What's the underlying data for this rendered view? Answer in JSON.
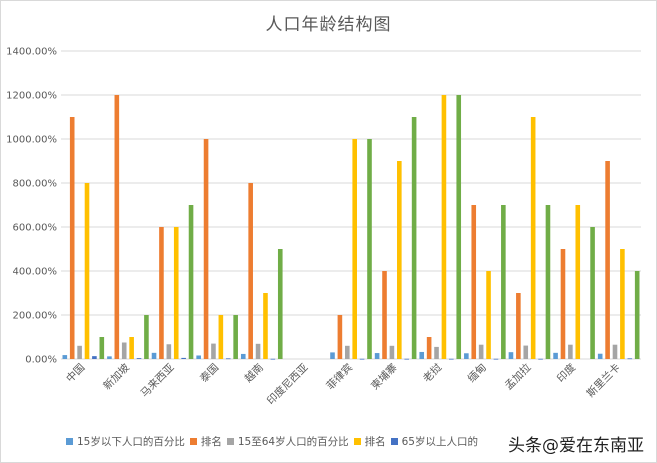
{
  "chart_data": {
    "type": "bar",
    "title": "人口年龄结构图",
    "xlabel": "",
    "ylabel": "",
    "ylim": [
      0,
      1400
    ],
    "y_ticks": [
      "0.00%",
      "200.00%",
      "400.00%",
      "600.00%",
      "800.00%",
      "1000.00%",
      "1200.00%",
      "1400.00%"
    ],
    "grid": true,
    "legend_position": "bottom",
    "categories": [
      "中国",
      "新加坡",
      "马来西亚",
      "泰国",
      "越南",
      "印度尼西亚",
      "菲律宾",
      "柬埔寨",
      "老挝",
      "缅甸",
      "孟加拉",
      "印度",
      "斯里兰卡"
    ],
    "series": [
      {
        "name": "15岁以下人口的百分比",
        "color": "#5b9bd5",
        "values": [
          17.8,
          12,
          28,
          16,
          23,
          null,
          30,
          27,
          32,
          26,
          31,
          28,
          24
        ]
      },
      {
        "name": "排名",
        "color": "#ed7d31",
        "values": [
          1100,
          1200,
          600,
          1000,
          800,
          null,
          200,
          400,
          100,
          700,
          300,
          500,
          900
        ]
      },
      {
        "name": "15至64岁人口的百分比",
        "color": "#a5a5a5",
        "values": [
          60,
          75,
          67,
          70,
          69,
          null,
          60,
          60,
          55,
          65,
          61,
          65,
          65
        ]
      },
      {
        "name": "排名",
        "color": "#ffc000",
        "values": [
          800,
          100,
          600,
          200,
          300,
          null,
          1000,
          900,
          1200,
          400,
          1100,
          700,
          500
        ]
      },
      {
        "name": "65岁以上人口的百分比",
        "color": "#4472c4",
        "values": [
          13,
          4,
          5,
          3,
          1,
          null,
          1,
          1,
          1,
          1,
          1,
          0,
          3
        ]
      },
      {
        "name": "排名",
        "color": "#70ad47",
        "values": [
          100,
          200,
          700,
          200,
          500,
          null,
          1000,
          1100,
          1200,
          700,
          700,
          600,
          400
        ]
      }
    ]
  },
  "legend": {
    "items": [
      {
        "label": "15岁以下人口的百分比",
        "color": "#5b9bd5"
      },
      {
        "label": "排名",
        "color": "#ed7d31"
      },
      {
        "label": "15至64岁人口的百分比",
        "color": "#a5a5a5"
      },
      {
        "label": "排名",
        "color": "#ffc000"
      },
      {
        "label": "65岁以上人口的",
        "color": "#4472c4"
      }
    ]
  },
  "watermark": "头条@爱在东南亚"
}
